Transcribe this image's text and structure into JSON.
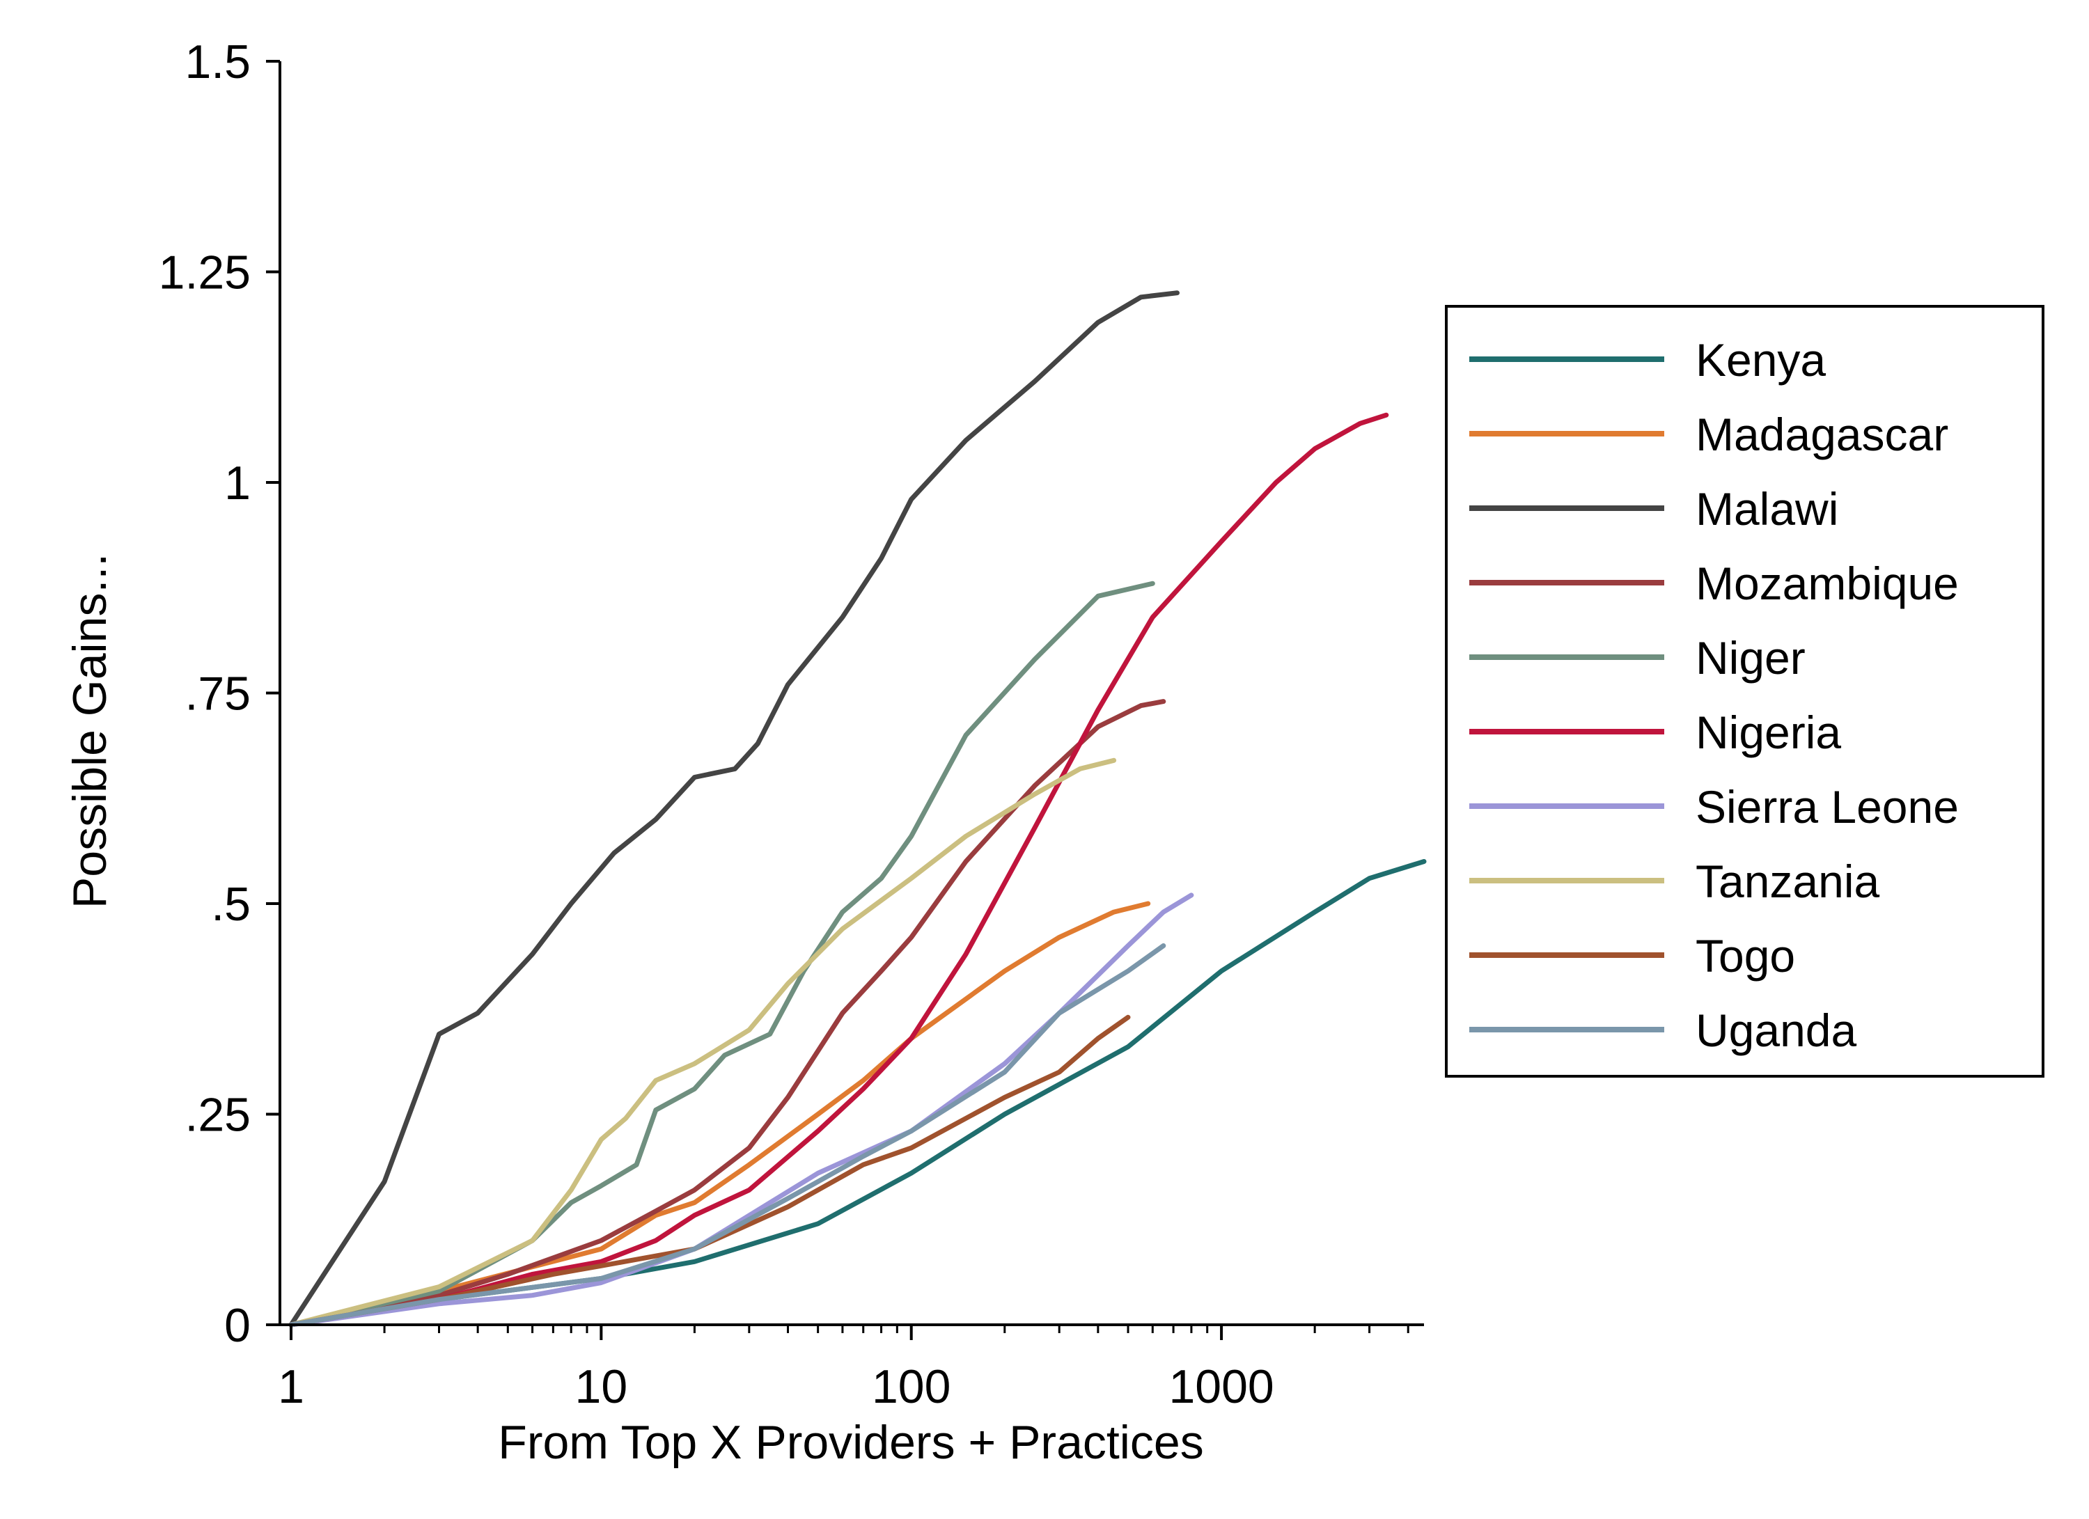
{
  "chart_data": {
    "type": "line",
    "title": "",
    "xlabel": "From Top X Providers + Practices",
    "ylabel": "Possible Gains...",
    "x_scale": "log",
    "xlim": [
      1,
      4500
    ],
    "ylim": [
      0,
      1.5
    ],
    "x_ticks": [
      {
        "value": 1,
        "label": "1"
      },
      {
        "value": 10,
        "label": "10"
      },
      {
        "value": 100,
        "label": "100"
      },
      {
        "value": 1000,
        "label": "1000"
      }
    ],
    "y_ticks": [
      {
        "value": 0,
        "label": "0"
      },
      {
        "value": 0.25,
        "label": ".25"
      },
      {
        "value": 0.5,
        "label": ".5"
      },
      {
        "value": 0.75,
        "label": ".75"
      },
      {
        "value": 1,
        "label": "1"
      },
      {
        "value": 1.25,
        "label": "1.25"
      },
      {
        "value": 1.5,
        "label": "1.5"
      }
    ],
    "grid": false,
    "legend_position": "right",
    "series": [
      {
        "name": "Kenya",
        "color": "#1f6e6e",
        "points": [
          [
            1,
            0
          ],
          [
            3,
            0.03
          ],
          [
            10,
            0.055
          ],
          [
            20,
            0.075
          ],
          [
            50,
            0.12
          ],
          [
            100,
            0.18
          ],
          [
            200,
            0.25
          ],
          [
            500,
            0.33
          ],
          [
            1000,
            0.42
          ],
          [
            2000,
            0.49
          ],
          [
            3000,
            0.53
          ],
          [
            4500,
            0.55
          ]
        ]
      },
      {
        "name": "Madagascar",
        "color": "#e07b30",
        "points": [
          [
            1,
            0
          ],
          [
            3,
            0.04
          ],
          [
            10,
            0.09
          ],
          [
            15,
            0.13
          ],
          [
            20,
            0.145
          ],
          [
            30,
            0.19
          ],
          [
            50,
            0.25
          ],
          [
            70,
            0.29
          ],
          [
            100,
            0.34
          ],
          [
            200,
            0.42
          ],
          [
            300,
            0.46
          ],
          [
            450,
            0.49
          ],
          [
            580,
            0.5
          ]
        ]
      },
      {
        "name": "Malawi",
        "color": "#444444",
        "points": [
          [
            1,
            0
          ],
          [
            2,
            0.17
          ],
          [
            3,
            0.345
          ],
          [
            4,
            0.37
          ],
          [
            6,
            0.44
          ],
          [
            8,
            0.5
          ],
          [
            11,
            0.56
          ],
          [
            15,
            0.6
          ],
          [
            20,
            0.65
          ],
          [
            27,
            0.66
          ],
          [
            32,
            0.69
          ],
          [
            40,
            0.76
          ],
          [
            60,
            0.84
          ],
          [
            80,
            0.91
          ],
          [
            100,
            0.98
          ],
          [
            150,
            1.05
          ],
          [
            250,
            1.12
          ],
          [
            400,
            1.19
          ],
          [
            550,
            1.22
          ],
          [
            720,
            1.225
          ]
        ]
      },
      {
        "name": "Mozambique",
        "color": "#9a3c3e",
        "points": [
          [
            1,
            0
          ],
          [
            3,
            0.035
          ],
          [
            5,
            0.06
          ],
          [
            10,
            0.1
          ],
          [
            15,
            0.135
          ],
          [
            20,
            0.16
          ],
          [
            30,
            0.21
          ],
          [
            40,
            0.27
          ],
          [
            60,
            0.37
          ],
          [
            80,
            0.42
          ],
          [
            100,
            0.46
          ],
          [
            150,
            0.55
          ],
          [
            250,
            0.64
          ],
          [
            400,
            0.71
          ],
          [
            550,
            0.735
          ],
          [
            650,
            0.74
          ]
        ]
      },
      {
        "name": "Niger",
        "color": "#6f8f7f",
        "points": [
          [
            1,
            0
          ],
          [
            3,
            0.04
          ],
          [
            6,
            0.1
          ],
          [
            8,
            0.145
          ],
          [
            10,
            0.165
          ],
          [
            13,
            0.19
          ],
          [
            15,
            0.255
          ],
          [
            20,
            0.28
          ],
          [
            25,
            0.32
          ],
          [
            35,
            0.345
          ],
          [
            45,
            0.42
          ],
          [
            60,
            0.49
          ],
          [
            80,
            0.53
          ],
          [
            100,
            0.58
          ],
          [
            150,
            0.7
          ],
          [
            250,
            0.79
          ],
          [
            400,
            0.865
          ],
          [
            600,
            0.88
          ]
        ]
      },
      {
        "name": "Nigeria",
        "color": "#c0143c",
        "points": [
          [
            1,
            0
          ],
          [
            3,
            0.03
          ],
          [
            6,
            0.06
          ],
          [
            10,
            0.075
          ],
          [
            15,
            0.1
          ],
          [
            20,
            0.13
          ],
          [
            30,
            0.16
          ],
          [
            50,
            0.23
          ],
          [
            70,
            0.28
          ],
          [
            100,
            0.34
          ],
          [
            150,
            0.44
          ],
          [
            250,
            0.59
          ],
          [
            400,
            0.73
          ],
          [
            600,
            0.84
          ],
          [
            1000,
            0.93
          ],
          [
            1500,
            1.0
          ],
          [
            2000,
            1.04
          ],
          [
            2800,
            1.07
          ],
          [
            3400,
            1.08
          ]
        ]
      },
      {
        "name": "Sierra Leone",
        "color": "#9b95d8",
        "points": [
          [
            1,
            0
          ],
          [
            3,
            0.025
          ],
          [
            6,
            0.035
          ],
          [
            10,
            0.05
          ],
          [
            20,
            0.09
          ],
          [
            50,
            0.18
          ],
          [
            100,
            0.23
          ],
          [
            200,
            0.31
          ],
          [
            300,
            0.37
          ],
          [
            500,
            0.45
          ],
          [
            650,
            0.49
          ],
          [
            800,
            0.51
          ]
        ]
      },
      {
        "name": "Tanzania",
        "color": "#cbbf80",
        "points": [
          [
            1,
            0
          ],
          [
            3,
            0.045
          ],
          [
            6,
            0.1
          ],
          [
            8,
            0.16
          ],
          [
            10,
            0.22
          ],
          [
            12,
            0.245
          ],
          [
            15,
            0.29
          ],
          [
            20,
            0.31
          ],
          [
            30,
            0.35
          ],
          [
            40,
            0.405
          ],
          [
            60,
            0.47
          ],
          [
            100,
            0.53
          ],
          [
            150,
            0.58
          ],
          [
            250,
            0.63
          ],
          [
            350,
            0.66
          ],
          [
            450,
            0.67
          ]
        ]
      },
      {
        "name": "Togo",
        "color": "#a0522d",
        "points": [
          [
            1,
            0
          ],
          [
            3,
            0.03
          ],
          [
            7,
            0.06
          ],
          [
            10,
            0.07
          ],
          [
            20,
            0.09
          ],
          [
            40,
            0.14
          ],
          [
            70,
            0.19
          ],
          [
            100,
            0.21
          ],
          [
            200,
            0.27
          ],
          [
            300,
            0.3
          ],
          [
            400,
            0.34
          ],
          [
            500,
            0.365
          ]
        ]
      },
      {
        "name": "Uganda",
        "color": "#7a96aa",
        "points": [
          [
            1,
            0
          ],
          [
            3,
            0.03
          ],
          [
            10,
            0.055
          ],
          [
            20,
            0.09
          ],
          [
            40,
            0.15
          ],
          [
            70,
            0.2
          ],
          [
            100,
            0.23
          ],
          [
            200,
            0.3
          ],
          [
            300,
            0.37
          ],
          [
            500,
            0.42
          ],
          [
            650,
            0.45
          ]
        ]
      }
    ]
  }
}
